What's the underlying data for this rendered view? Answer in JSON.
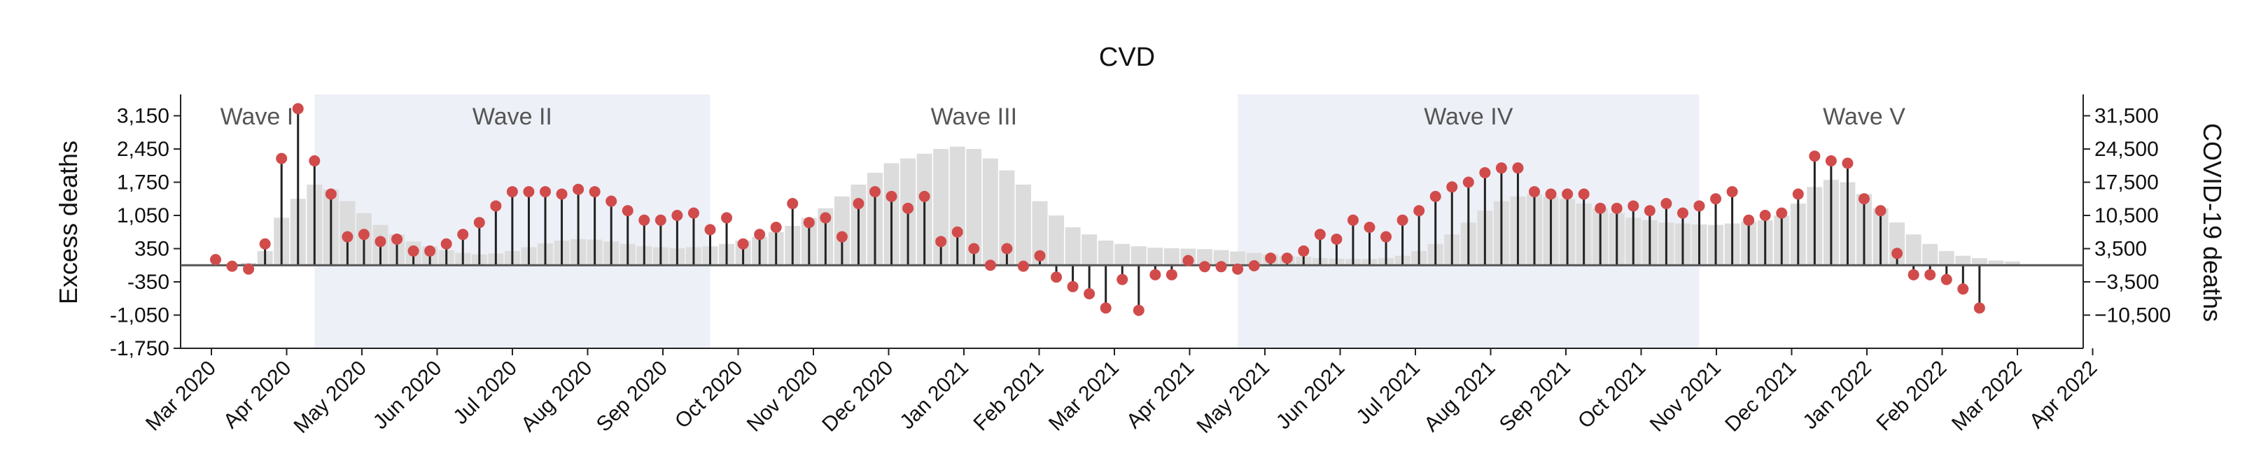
{
  "chart_data": {
    "type": "bar",
    "title": "CVD",
    "ylabel_left": "Excess deaths",
    "ylabel_right": "COVID-19 deaths",
    "ylim_left": [
      -1750,
      3600
    ],
    "ylim_right": [
      -17500,
      36000
    ],
    "yticks_left": [
      3150,
      2450,
      1750,
      1050,
      350,
      -350,
      -1050,
      -1750
    ],
    "ytick_labels_left": [
      "3,150",
      "2,450",
      "1,750",
      "1,050",
      "350",
      "-350",
      "-1,050",
      "-1,750"
    ],
    "yticks_right": [
      31500,
      24500,
      17500,
      10500,
      3500,
      -3500,
      -10500
    ],
    "ytick_labels_right": [
      "31,500",
      "24,500",
      "17,500",
      "10,500",
      "3,500",
      "−3,500",
      "−10,500"
    ],
    "x_labels": [
      "Mar 2020",
      "Apr 2020",
      "May 2020",
      "Jun 2020",
      "Jul 2020",
      "Aug 2020",
      "Sep 2020",
      "Oct 2020",
      "Nov 2020",
      "Dec 2020",
      "Jan 2021",
      "Feb 2021",
      "Mar 2021",
      "Apr 2021",
      "May 2021",
      "Jun 2021",
      "Jul 2021",
      "Aug 2021",
      "Sep 2021",
      "Oct 2021",
      "Nov 2021",
      "Dec 2021",
      "Jan 2022",
      "Feb 2022",
      "Mar 2022",
      "Apr 2022"
    ],
    "x_unit": "week index (week 0 = mid-March 2020)",
    "waves": [
      {
        "name": "Wave I",
        "start_week": -1,
        "end_week": 6,
        "shaded": false
      },
      {
        "name": "Wave II",
        "start_week": 6,
        "end_week": 30,
        "shaded": true
      },
      {
        "name": "Wave III",
        "start_week": 30,
        "end_week": 62,
        "shaded": false
      },
      {
        "name": "Wave IV",
        "start_week": 62,
        "end_week": 90,
        "shaded": true
      },
      {
        "name": "Wave V",
        "start_week": 90,
        "end_week": 110,
        "shaded": false
      }
    ],
    "series": [
      {
        "name": "Excess deaths",
        "axis": "left",
        "style": "lollipop",
        "color": "#d14b4b",
        "week_start": 0,
        "values": [
          120,
          -20,
          -80,
          450,
          2250,
          3300,
          2200,
          1500,
          600,
          650,
          500,
          550,
          300,
          300,
          450,
          650,
          900,
          1250,
          1550,
          1550,
          1550,
          1500,
          1600,
          1550,
          1350,
          1150,
          950,
          950,
          1050,
          1100,
          750,
          1000,
          450,
          650,
          800,
          1300,
          900,
          1000,
          600,
          1300,
          1550,
          1450,
          1200,
          1450,
          500,
          700,
          350,
          0,
          350,
          -20,
          200,
          -250,
          -450,
          -600,
          -900,
          -300,
          -950,
          -200,
          -200,
          100,
          -30,
          -30,
          -80,
          -10,
          150,
          150,
          300,
          650,
          550,
          950,
          800,
          600,
          950,
          1150,
          1450,
          1650,
          1750,
          1950,
          2050,
          2050,
          1550,
          1500,
          1500,
          1500,
          1200,
          1200,
          1250,
          1150,
          1300,
          1100,
          1250,
          1400,
          1550,
          950,
          1050,
          1100,
          1500,
          2300,
          2200,
          2150,
          1400,
          1150,
          250,
          -200,
          -200,
          -300,
          -500,
          -900
        ]
      },
      {
        "name": "COVID-19 deaths",
        "axis": "right",
        "style": "bar",
        "color": "#dcdcdc",
        "week_start": 0,
        "values": [
          0,
          0,
          500,
          3000,
          10000,
          14000,
          17000,
          16000,
          13500,
          11000,
          8500,
          6500,
          5000,
          4000,
          3200,
          2600,
          2300,
          2500,
          3000,
          3800,
          4600,
          5200,
          5500,
          5400,
          5000,
          4500,
          4000,
          3800,
          3600,
          3800,
          4000,
          4500,
          5200,
          6000,
          7000,
          8300,
          10000,
          12000,
          14500,
          17000,
          19500,
          21500,
          22500,
          23500,
          24500,
          25000,
          24500,
          22500,
          20000,
          17000,
          13500,
          10500,
          8000,
          6500,
          5200,
          4500,
          4000,
          3700,
          3600,
          3500,
          3400,
          3200,
          2900,
          2600,
          2300,
          2000,
          1800,
          1500,
          1400,
          1300,
          1300,
          1500,
          2000,
          3000,
          4500,
          6500,
          9000,
          11500,
          13500,
          14500,
          15000,
          14500,
          14000,
          13000,
          12000,
          11000,
          10000,
          9500,
          9000,
          8800,
          8600,
          8500,
          8800,
          9200,
          9500,
          10500,
          13000,
          16500,
          18000,
          17500,
          15000,
          12000,
          9000,
          6500,
          4500,
          3000,
          2000,
          1500,
          1000,
          800
        ]
      }
    ]
  }
}
